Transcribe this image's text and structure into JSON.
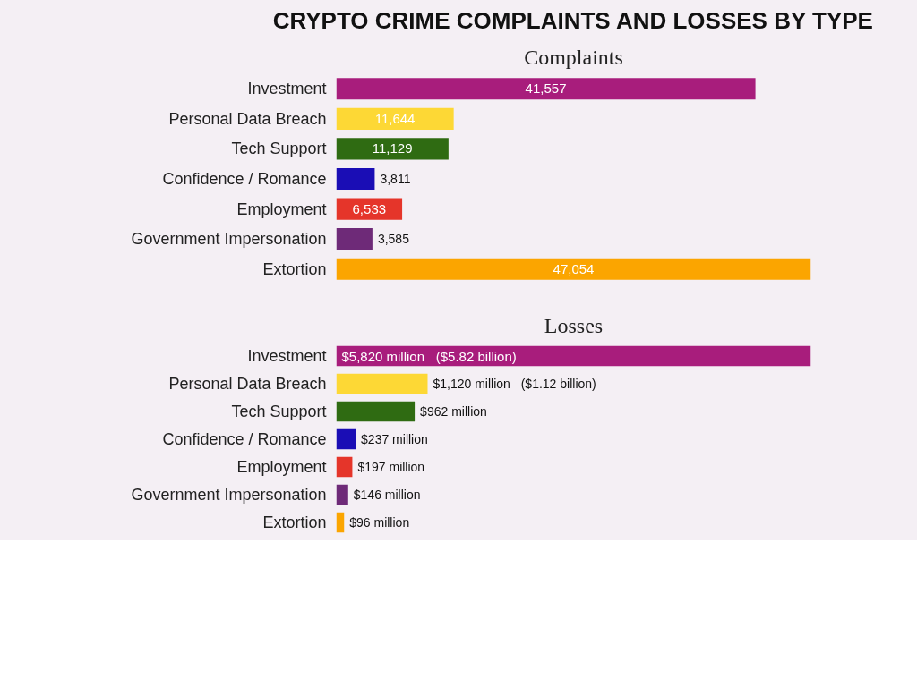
{
  "chart_data": [
    {
      "type": "bar",
      "orientation": "horizontal",
      "title": "CRYPTO CRIME COMPLAINTS AND LOSSES BY TYPE",
      "subtitle": "Complaints",
      "categories": [
        "Investment",
        "Personal Data Breach",
        "Tech Support",
        "Confidence / Romance",
        "Employment",
        "Government Impersonation",
        "Extortion"
      ],
      "values": [
        41557,
        11644,
        11129,
        3811,
        6533,
        3585,
        47054
      ],
      "colors": [
        "#a81d7c",
        "#fdd835",
        "#2f6b12",
        "#1a0db5",
        "#e5352a",
        "#6e2a78",
        "#fba500"
      ],
      "value_labels": [
        "41,557",
        "11,644",
        "11,129",
        "3,811",
        "6,533",
        "3,585",
        "47,054"
      ]
    },
    {
      "type": "bar",
      "orientation": "horizontal",
      "title": "Losses",
      "categories": [
        "Investment",
        "Personal Data Breach",
        "Tech Support",
        "Confidence / Romance",
        "Employment",
        "Government Impersonation",
        "Extortion"
      ],
      "values": [
        5820,
        1120,
        962,
        237,
        197,
        146,
        96
      ],
      "colors": [
        "#a81d7c",
        "#fdd835",
        "#2f6b12",
        "#1a0db5",
        "#e5352a",
        "#6e2a78",
        "#fba500"
      ],
      "annotations": [
        "($5.82 billion)",
        "($1.12 billion)"
      ],
      "value_labels": [
        "$5,820 million",
        "$1,120 million",
        "$962 million",
        "$237 million",
        "$197 million",
        "$146 million",
        "$96 million"
      ]
    }
  ]
}
